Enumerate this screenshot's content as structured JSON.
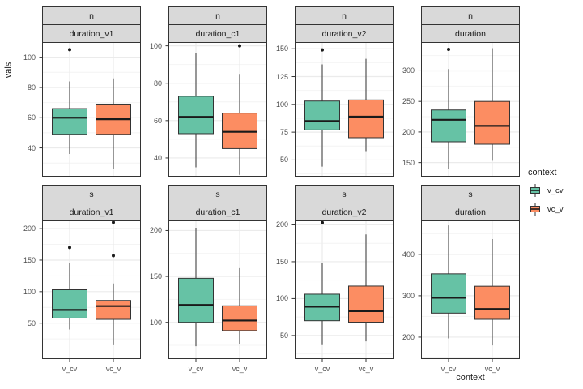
{
  "ylabel": "vals",
  "xlabel": "context",
  "legend": {
    "title": "context",
    "entries": [
      {
        "label": "v_cv",
        "color": "#66C2A5"
      },
      {
        "label": "vc_v",
        "color": "#FC8D62"
      }
    ]
  },
  "colors": {
    "fill_v_cv": "#66C2A5",
    "fill_vc_v": "#FC8D62",
    "strip_bg": "#D9D9D9",
    "panel_border": "#333333",
    "box_stroke": "#333333",
    "median_stroke": "#1a1a1a",
    "grid_major": "#EBEBEB",
    "grid_minor": "#F4F4F4",
    "axis_text": "#4D4D4D",
    "outlier": "#1a1a1a"
  },
  "chart_data": {
    "type": "boxplot",
    "facet_rows": [
      "n",
      "s"
    ],
    "facet_cols": [
      "duration_v1",
      "duration_c1",
      "duration_v2",
      "duration"
    ],
    "x_categories": [
      "v_cv",
      "vc_v"
    ],
    "legend_position": "right",
    "grid": true,
    "panels": [
      {
        "facet_row": "n",
        "facet_col": "duration_v1",
        "ylim": [
          21,
          110
        ],
        "yticks": [
          40,
          60,
          80,
          100
        ],
        "boxes": [
          {
            "group": "v_cv",
            "whisker_low": 36,
            "q1": 49,
            "median": 60,
            "q3": 66,
            "whisker_high": 84,
            "outliers": [
              105
            ]
          },
          {
            "group": "vc_v",
            "whisker_low": 26,
            "q1": 49,
            "median": 59,
            "q3": 69,
            "whisker_high": 86,
            "outliers": []
          }
        ]
      },
      {
        "facet_row": "n",
        "facet_col": "duration_c1",
        "ylim": [
          30,
          102
        ],
        "yticks": [
          40,
          60,
          80,
          100
        ],
        "boxes": [
          {
            "group": "v_cv",
            "whisker_low": 35,
            "q1": 53,
            "median": 62,
            "q3": 73,
            "whisker_high": 96,
            "outliers": []
          },
          {
            "group": "vc_v",
            "whisker_low": 31,
            "q1": 45,
            "median": 54,
            "q3": 64,
            "whisker_high": 85,
            "outliers": [
              100
            ]
          }
        ]
      },
      {
        "facet_row": "n",
        "facet_col": "duration_v2",
        "ylim": [
          35,
          156
        ],
        "yticks": [
          50,
          75,
          100,
          125,
          150
        ],
        "boxes": [
          {
            "group": "v_cv",
            "whisker_low": 44,
            "q1": 77,
            "median": 85,
            "q3": 103,
            "whisker_high": 136,
            "outliers": [
              149
            ]
          },
          {
            "group": "vc_v",
            "whisker_low": 58,
            "q1": 70,
            "median": 89,
            "q3": 104,
            "whisker_high": 141,
            "outliers": []
          }
        ]
      },
      {
        "facet_row": "n",
        "facet_col": "duration",
        "ylim": [
          127,
          347
        ],
        "yticks": [
          150,
          200,
          250,
          300
        ],
        "boxes": [
          {
            "group": "v_cv",
            "whisker_low": 139,
            "q1": 184,
            "median": 220,
            "q3": 236,
            "whisker_high": 303,
            "outliers": [
              335
            ]
          },
          {
            "group": "vc_v",
            "whisker_low": 153,
            "q1": 180,
            "median": 210,
            "q3": 250,
            "whisker_high": 337,
            "outliers": []
          }
        ]
      },
      {
        "facet_row": "s",
        "facet_col": "duration_v1",
        "ylim": [
          -7,
          213
        ],
        "yticks": [
          50,
          100,
          150,
          200
        ],
        "boxes": [
          {
            "group": "v_cv",
            "whisker_low": 40,
            "q1": 58,
            "median": 71,
            "q3": 103,
            "whisker_high": 146,
            "outliers": [
              170
            ]
          },
          {
            "group": "vc_v",
            "whisker_low": 15,
            "q1": 56,
            "median": 77,
            "q3": 86,
            "whisker_high": 113,
            "outliers": [
              157,
              210
            ]
          }
        ]
      },
      {
        "facet_row": "s",
        "facet_col": "duration_c1",
        "ylim": [
          60,
          211
        ],
        "yticks": [
          100,
          150,
          200
        ],
        "boxes": [
          {
            "group": "v_cv",
            "whisker_low": 74,
            "q1": 100,
            "median": 119,
            "q3": 148,
            "whisker_high": 203,
            "outliers": []
          },
          {
            "group": "vc_v",
            "whisker_low": 76,
            "q1": 91,
            "median": 102,
            "q3": 118,
            "whisker_high": 159,
            "outliers": []
          }
        ]
      },
      {
        "facet_row": "s",
        "facet_col": "duration_v2",
        "ylim": [
          18,
          206
        ],
        "yticks": [
          50,
          100,
          150,
          200
        ],
        "boxes": [
          {
            "group": "v_cv",
            "whisker_low": 37,
            "q1": 70,
            "median": 89,
            "q3": 106,
            "whisker_high": 148,
            "outliers": [
              203
            ]
          },
          {
            "group": "vc_v",
            "whisker_low": 42,
            "q1": 68,
            "median": 83,
            "q3": 117,
            "whisker_high": 187,
            "outliers": []
          }
        ]
      },
      {
        "facet_row": "s",
        "facet_col": "duration",
        "ylim": [
          147,
          482
        ],
        "yticks": [
          200,
          300,
          400
        ],
        "boxes": [
          {
            "group": "v_cv",
            "whisker_low": 197,
            "q1": 258,
            "median": 295,
            "q3": 353,
            "whisker_high": 470,
            "outliers": []
          },
          {
            "group": "vc_v",
            "whisker_low": 180,
            "q1": 243,
            "median": 268,
            "q3": 323,
            "whisker_high": 437,
            "outliers": []
          }
        ]
      }
    ]
  }
}
